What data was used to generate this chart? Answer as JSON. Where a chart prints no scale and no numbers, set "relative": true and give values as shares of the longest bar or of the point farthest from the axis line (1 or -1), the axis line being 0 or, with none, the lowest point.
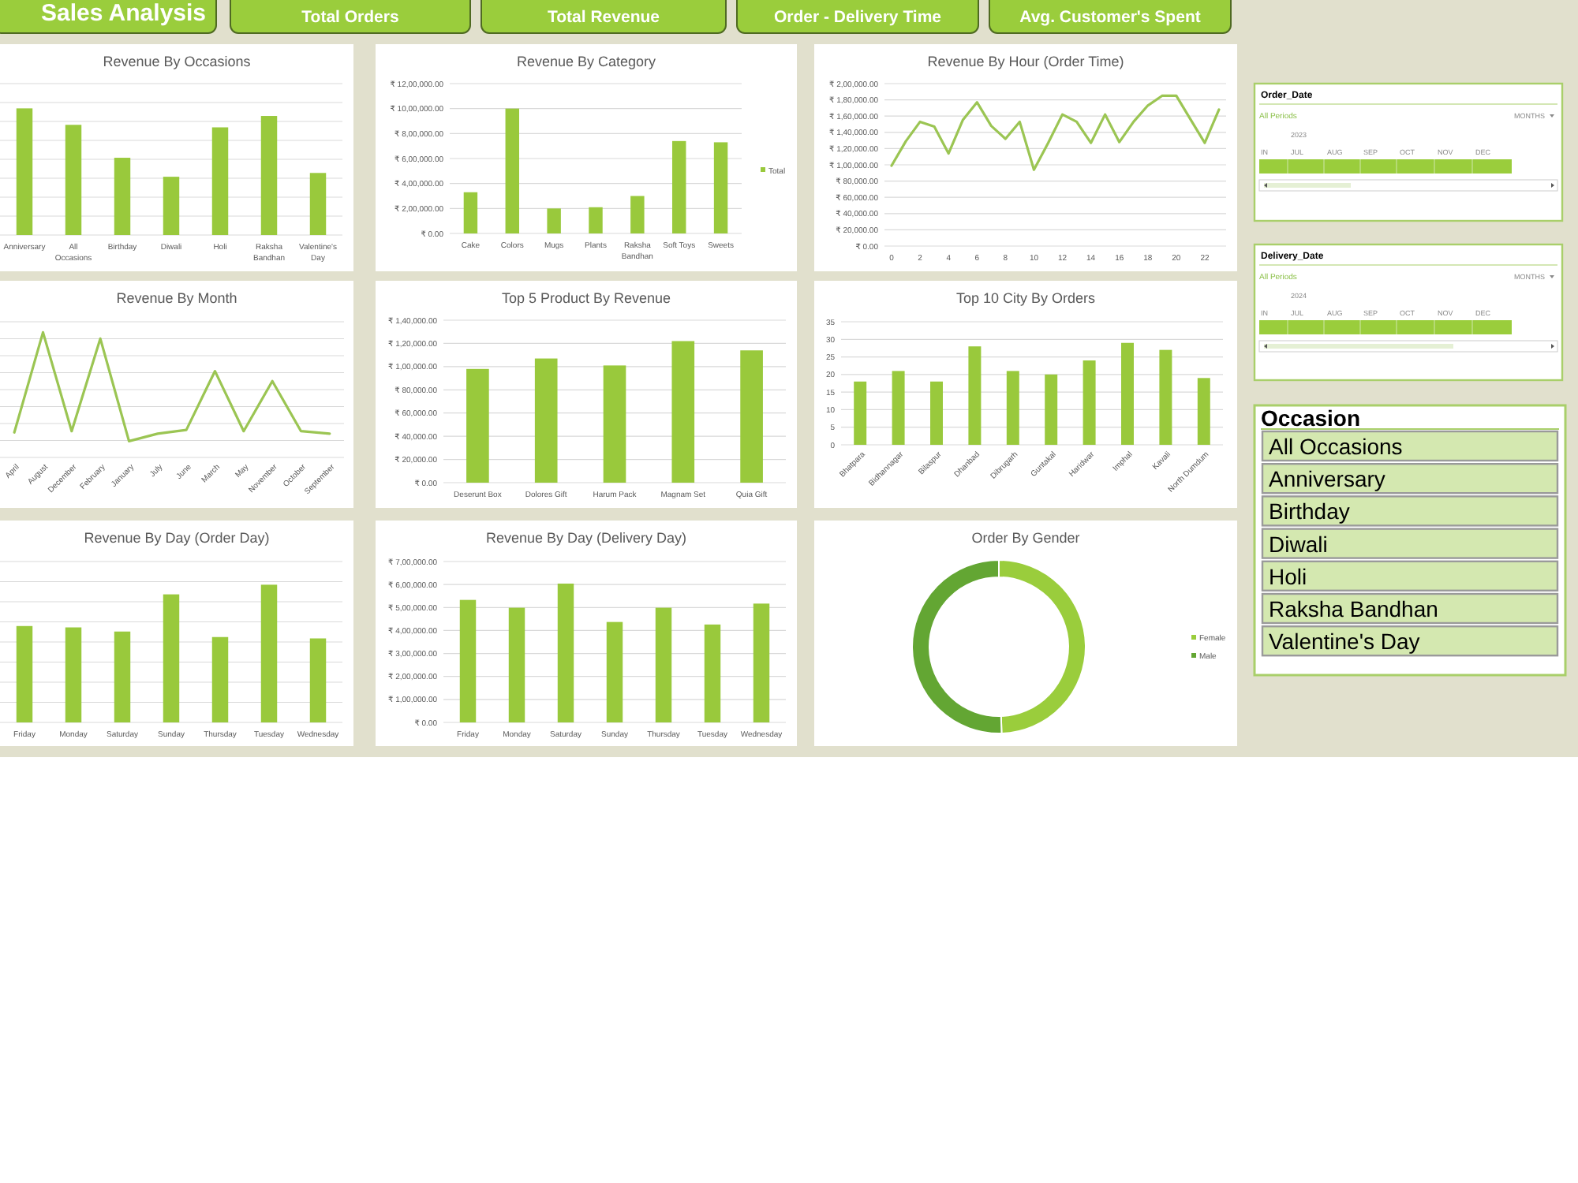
{
  "chart_data": [
    {
      "type": "other",
      "title": "Sales Analysis",
      "annotations": [
        "Total Orders",
        "Total Revenue",
        "Order - Delivery Time",
        "Avg. Customer's Spent"
      ]
    },
    {
      "type": "bar",
      "title": "Revenue By Occasions",
      "relative": true,
      "grid": true,
      "categories": [
        "Anniversary",
        "All Occasions",
        "Birthday",
        "Diwali",
        "Holi",
        "Raksha Bandhan",
        "Valentine's Day"
      ],
      "color": "#99c93c",
      "values": [
        1,
        0.87,
        0.61,
        0.46,
        0.85,
        0.94,
        0.49
      ]
    },
    {
      "type": "bar",
      "title": "Revenue By Category",
      "grid": true,
      "legend": "right",
      "categories": [
        "Cake",
        "Colors",
        "Mugs",
        "Plants",
        "Raksha Bandhan",
        "Soft Toys",
        "Sweets"
      ],
      "ylim": [
        0,
        1200000
      ],
      "yticks": [
        {
          "value": 0,
          "label": "₹ 0.00"
        },
        {
          "value": 200000,
          "label": "₹ 2,00,000.00"
        },
        {
          "value": 400000,
          "label": "₹ 4,00,000.00"
        },
        {
          "value": 600000,
          "label": "₹ 6,00,000.00"
        },
        {
          "value": 800000,
          "label": "₹ 8,00,000.00"
        },
        {
          "value": 1000000,
          "label": "₹ 10,00,000.00"
        },
        {
          "value": 1200000,
          "label": "₹ 12,00,000.00"
        }
      ],
      "series": [
        {
          "name": "Total",
          "color": "#99c93c",
          "values": [
            330000,
            1000000,
            200000,
            210000,
            300000,
            740000,
            730000
          ]
        }
      ]
    },
    {
      "type": "line",
      "title": "Revenue By Hour (Order Time)",
      "grid": true,
      "x": [
        0,
        1,
        2,
        3,
        4,
        5,
        6,
        7,
        8,
        9,
        10,
        11,
        12,
        13,
        14,
        15,
        16,
        17,
        18,
        19,
        20,
        21,
        22,
        23
      ],
      "xlim": [
        -0.5,
        23.5
      ],
      "xticks": [
        0,
        2,
        4,
        6,
        8,
        10,
        12,
        14,
        16,
        18,
        20,
        22
      ],
      "ylim": [
        0,
        200000
      ],
      "yticks": [
        {
          "value": 0,
          "label": "₹ 0.00"
        },
        {
          "value": 20000,
          "label": "₹ 20,000.00"
        },
        {
          "value": 40000,
          "label": "₹ 40,000.00"
        },
        {
          "value": 60000,
          "label": "₹ 60,000.00"
        },
        {
          "value": 80000,
          "label": "₹ 80,000.00"
        },
        {
          "value": 100000,
          "label": "₹ 1,00,000.00"
        },
        {
          "value": 120000,
          "label": "₹ 1,20,000.00"
        },
        {
          "value": 140000,
          "label": "₹ 1,40,000.00"
        },
        {
          "value": 160000,
          "label": "₹ 1,60,000.00"
        },
        {
          "value": 180000,
          "label": "₹ 1,80,000.00"
        },
        {
          "value": 200000,
          "label": "₹ 2,00,000.00"
        }
      ],
      "color": "#9bc553",
      "values": [
        99000,
        129000,
        153000,
        147000,
        114000,
        155000,
        177000,
        148000,
        132000,
        153000,
        94000,
        127000,
        162000,
        153000,
        127000,
        162000,
        128000,
        153000,
        173000,
        185000,
        185000,
        156000,
        127000,
        168000
      ]
    },
    {
      "type": "other",
      "title": "Order_Date",
      "annotations": [
        "All Periods",
        "MONTHS",
        "2023",
        "IN",
        "JUL",
        "AUG",
        "SEP",
        "OCT",
        "NOV",
        "DEC"
      ]
    },
    {
      "type": "line",
      "title": "Revenue By Month",
      "relative": true,
      "grid": true,
      "categories": [
        "April",
        "August",
        "December",
        "February",
        "January",
        "July",
        "June",
        "March",
        "May",
        "November",
        "October",
        "September"
      ],
      "color": "#9bc553",
      "values": [
        0.2,
        1,
        0.21,
        0.95,
        0.13,
        0.19,
        0.22,
        0.69,
        0.21,
        0.61,
        0.21,
        0.19
      ]
    },
    {
      "type": "bar",
      "title": "Top 5 Product By Revenue",
      "grid": true,
      "categories": [
        "Deserunt Box",
        "Dolores Gift",
        "Harum Pack",
        "Magnam Set",
        "Quia Gift"
      ],
      "ylim": [
        0,
        140000
      ],
      "yticks": [
        {
          "value": 0,
          "label": "₹ 0.00"
        },
        {
          "value": 20000,
          "label": "₹ 20,000.00"
        },
        {
          "value": 40000,
          "label": "₹ 40,000.00"
        },
        {
          "value": 60000,
          "label": "₹ 60,000.00"
        },
        {
          "value": 80000,
          "label": "₹ 80,000.00"
        },
        {
          "value": 100000,
          "label": "₹ 1,00,000.00"
        },
        {
          "value": 120000,
          "label": "₹ 1,20,000.00"
        },
        {
          "value": 140000,
          "label": "₹ 1,40,000.00"
        }
      ],
      "color": "#99c93c",
      "values": [
        98000,
        107000,
        101000,
        122000,
        114000
      ]
    },
    {
      "type": "bar",
      "title": "Top 10 City By Orders",
      "grid": true,
      "categories": [
        "Bhatpara",
        "Bidhannagar",
        "Bilaspur",
        "Dhanbad",
        "Dibrugarh",
        "Guntakal",
        "Haridwar",
        "Imphal",
        "Kavali",
        "North Dumdum"
      ],
      "ylim": [
        0,
        35
      ],
      "yticks": [
        0,
        5,
        10,
        15,
        20,
        25,
        30,
        35
      ],
      "color": "#99c93c",
      "values": [
        18,
        21,
        18,
        28,
        21,
        20,
        24,
        29,
        27,
        19
      ]
    },
    {
      "type": "other",
      "title": "Delivery_Date",
      "annotations": [
        "All Periods",
        "MONTHS",
        "2024",
        "IN",
        "JUL",
        "AUG",
        "SEP",
        "OCT",
        "NOV",
        "DEC"
      ]
    },
    {
      "type": "bar",
      "title": "Revenue By  Day (Order Day)",
      "relative": true,
      "grid": true,
      "categories": [
        "Friday",
        "Monday",
        "Saturday",
        "Sunday",
        "Thursday",
        "Tuesday",
        "Wednesday"
      ],
      "color": "#99c93c",
      "values": [
        0.7,
        0.69,
        0.66,
        0.93,
        0.62,
        1,
        0.61
      ]
    },
    {
      "type": "bar",
      "title": "Revenue By  Day (Delivery Day)",
      "grid": true,
      "categories": [
        "Friday",
        "Monday",
        "Saturday",
        "Sunday",
        "Thursday",
        "Tuesday",
        "Wednesday"
      ],
      "ylim": [
        0,
        700000
      ],
      "yticks": [
        {
          "value": 0,
          "label": "₹ 0.00"
        },
        {
          "value": 100000,
          "label": "₹ 1,00,000.00"
        },
        {
          "value": 200000,
          "label": "₹ 2,00,000.00"
        },
        {
          "value": 300000,
          "label": "₹ 3,00,000.00"
        },
        {
          "value": 400000,
          "label": "₹ 4,00,000.00"
        },
        {
          "value": 500000,
          "label": "₹ 5,00,000.00"
        },
        {
          "value": 600000,
          "label": "₹ 6,00,000.00"
        },
        {
          "value": 700000,
          "label": "₹ 7,00,000.00"
        }
      ],
      "color": "#99c93c",
      "values": [
        533000,
        499000,
        604000,
        437000,
        499000,
        426000,
        517000
      ]
    },
    {
      "type": "donut",
      "title": "Order By Gender",
      "legend": "right",
      "categories": [
        "Female",
        "Male"
      ],
      "values": [
        49.5,
        50.5
      ],
      "colors": [
        "#9acd3c",
        "#63a633"
      ]
    },
    {
      "type": "other",
      "title": "Occasion",
      "annotations": [
        "All Occasions",
        "Anniversary",
        "Birthday",
        "Diwali",
        "Holi",
        "Raksha Bandhan",
        "Valentine's Day"
      ]
    }
  ]
}
